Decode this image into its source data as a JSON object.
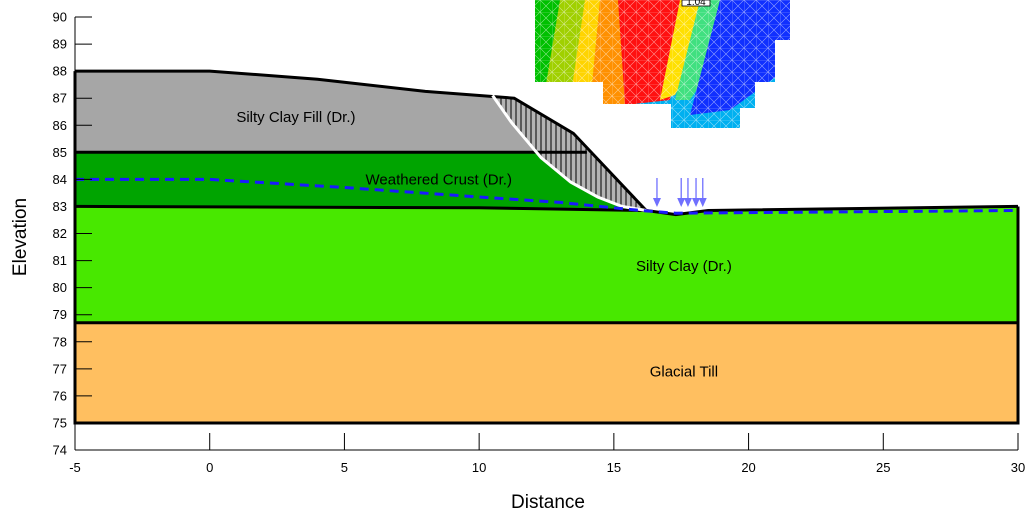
{
  "chart_data": {
    "type": "slope-stability-section",
    "xlabel": "Distance",
    "ylabel": "Elevation",
    "xlim": [
      -5,
      30
    ],
    "ylim": [
      74,
      90
    ],
    "x_ticks": [
      -5,
      0,
      5,
      10,
      15,
      20,
      25,
      30
    ],
    "x_tick_labels": [
      "-5",
      "0",
      "5",
      "10",
      "15",
      "20",
      "25",
      "30"
    ],
    "y_ticks": [
      74,
      75,
      76,
      77,
      78,
      79,
      80,
      81,
      82,
      83,
      84,
      85,
      86,
      87,
      88,
      89,
      90
    ],
    "y_tick_labels": [
      "74",
      "75",
      "76",
      "77",
      "78",
      "79",
      "80",
      "81",
      "82",
      "83",
      "84",
      "85",
      "86",
      "87",
      "88",
      "89",
      "90"
    ],
    "colors": {
      "fill": "#a6a6a6",
      "crust": "#00a400",
      "silty_clay": "#48e800",
      "till": "#ffbf60",
      "water_table": "#1a1aff",
      "slip_surface": "#ffffff",
      "load_arrows": "#7070ff"
    },
    "layers": [
      {
        "name": "Silty Clay Fill (Dr.)",
        "label_pos": [
          3.2,
          86.3
        ],
        "polygon": [
          [
            -5,
            88
          ],
          [
            0,
            88
          ],
          [
            4,
            87.7
          ],
          [
            8,
            87.25
          ],
          [
            11.3,
            87.0
          ],
          [
            13.5,
            85.7
          ],
          [
            14,
            85
          ],
          [
            -5,
            85
          ]
        ]
      },
      {
        "name": "Weathered Crust (Dr.)",
        "label_pos": [
          8.5,
          84.0
        ],
        "polygon": [
          [
            -5,
            85
          ],
          [
            14,
            85
          ],
          [
            16.2,
            82.85
          ],
          [
            10,
            82.95
          ],
          [
            -5,
            83
          ]
        ]
      },
      {
        "name": "Silty Clay (Dr.)",
        "label_pos": [
          17.6,
          80.8
        ],
        "polygon": [
          [
            -5,
            83
          ],
          [
            10,
            82.95
          ],
          [
            16.2,
            82.85
          ],
          [
            17.3,
            82.7
          ],
          [
            18.5,
            82.85
          ],
          [
            30,
            83
          ],
          [
            30,
            78.7
          ],
          [
            -5,
            78.7
          ]
        ]
      },
      {
        "name": "Glacial Till",
        "label_pos": [
          17.6,
          76.9
        ],
        "polygon": [
          [
            -5,
            78.7
          ],
          [
            30,
            78.7
          ],
          [
            30,
            75
          ],
          [
            -5,
            75
          ]
        ]
      }
    ],
    "ground_surface": [
      [
        -5,
        88
      ],
      [
        0,
        88
      ],
      [
        4,
        87.7
      ],
      [
        8,
        87.25
      ],
      [
        11.3,
        87.0
      ],
      [
        13.5,
        85.7
      ],
      [
        16.2,
        82.85
      ],
      [
        17.3,
        82.7
      ],
      [
        18.5,
        82.85
      ],
      [
        30,
        83
      ]
    ],
    "water_table": [
      [
        -5,
        84.0
      ],
      [
        0,
        84.0
      ],
      [
        5,
        83.7
      ],
      [
        10,
        83.35
      ],
      [
        13,
        83.15
      ],
      [
        16,
        82.85
      ],
      [
        17.3,
        82.75
      ],
      [
        30,
        82.85
      ]
    ],
    "slip_surface": [
      [
        10.5,
        87.1
      ],
      [
        11.2,
        86.1
      ],
      [
        12.3,
        84.8
      ],
      [
        13.4,
        83.9
      ],
      [
        14.4,
        83.35
      ],
      [
        15.3,
        83.0
      ],
      [
        16.2,
        82.85
      ]
    ],
    "sliding_mass": [
      [
        10.5,
        87.1
      ],
      [
        11.3,
        87.0
      ],
      [
        13.5,
        85.7
      ],
      [
        16.2,
        82.85
      ],
      [
        15.3,
        83.0
      ],
      [
        14.4,
        83.35
      ],
      [
        13.4,
        83.9
      ],
      [
        12.3,
        84.8
      ],
      [
        11.2,
        86.1
      ]
    ],
    "point_loads": [
      16.6,
      17.5,
      17.75,
      18.05,
      18.3
    ],
    "contour_annotation": "1.04"
  }
}
